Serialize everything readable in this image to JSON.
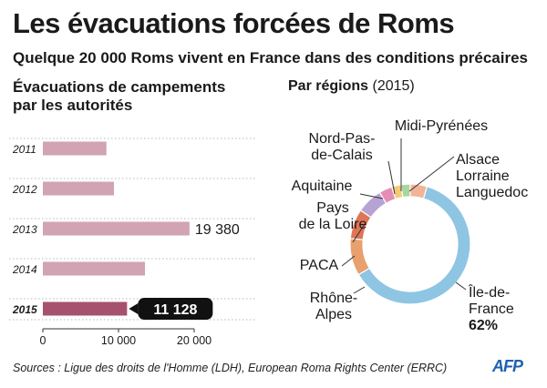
{
  "header": {
    "title": "Les évacuations forcées de Roms",
    "subtitle": "Quelque 20 000 Roms vivent en France dans des conditions précaires"
  },
  "left_section_title": "Évacuations de campements par les autorités",
  "right_section_title": {
    "main": "Par régions",
    "year": "(2015)"
  },
  "footer": {
    "sources": "Sources : Ligue des droits de l'Homme (LDH), European Roma Rights Center (ERRC)",
    "logo": "AFP"
  },
  "colors": {
    "bar": "#d1a3b3",
    "bar_highlight": "#a6526f",
    "label_bg": "#111111"
  },
  "chart_data": [
    {
      "type": "bar",
      "orientation": "horizontal",
      "categories": [
        "2011",
        "2012",
        "2013",
        "2014",
        "2015"
      ],
      "values": [
        8400,
        9400,
        19380,
        13500,
        11128
      ],
      "data_labels": [
        "",
        "",
        "19 380",
        "",
        "11 128"
      ],
      "highlight": "2015",
      "xlim": [
        0,
        20000
      ],
      "xticks": [
        0,
        10000,
        20000
      ],
      "xtick_labels": [
        "0",
        "10 000",
        "20 000"
      ]
    },
    {
      "type": "pie",
      "subtype": "donut",
      "year": "2015",
      "slices": [
        {
          "label": "Île-de-France",
          "value": 62,
          "value_label": "62%",
          "color": "#8ec5e3"
        },
        {
          "label": "Rhône-Alpes",
          "value": 10,
          "color": "#e8a06e"
        },
        {
          "label": "PACA",
          "value": 8,
          "color": "#e07555"
        },
        {
          "label": "Pays de la Loire",
          "value": 7,
          "color": "#b7a3d3"
        },
        {
          "label": "Aquitaine",
          "value": 3.5,
          "color": "#e58db5"
        },
        {
          "label": "Nord-Pas-de-Calais",
          "value": 2.5,
          "color": "#f4ca74"
        },
        {
          "label": "Midi-Pyrénées",
          "value": 2.5,
          "color": "#a7d6a0"
        },
        {
          "label": "Alsace Lorraine Languedoc",
          "value": 4.5,
          "color": "#f3b396"
        }
      ]
    }
  ]
}
